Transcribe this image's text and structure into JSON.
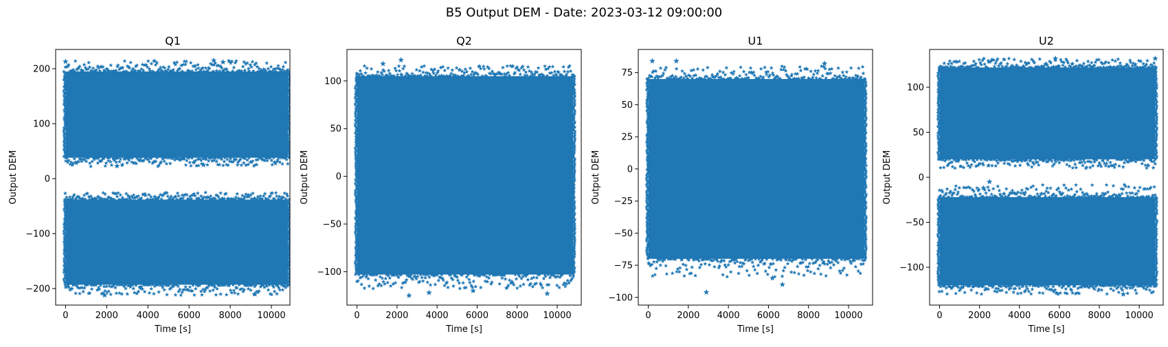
{
  "figure": {
    "title": "B5 Output DEM - Date: 2023-03-12 09:00:00"
  },
  "chart_data": [
    {
      "type": "scatter",
      "title": "Q1",
      "xlabel": "Time [s]",
      "ylabel": "Output DEM",
      "marker": "star",
      "color": "#1f77b4",
      "xlim": [
        -480,
        10900
      ],
      "ylim": [
        -230,
        235
      ],
      "xticks": [
        0,
        2000,
        4000,
        6000,
        8000,
        10000
      ],
      "yticks": [
        -200,
        -100,
        0,
        100,
        200
      ],
      "ytick_labels": [
        "−200",
        "−100",
        "0",
        "100",
        "200"
      ],
      "grid": false,
      "legend": "none",
      "x_range": [
        0,
        10800
      ],
      "bands": [
        {
          "ymin": 38,
          "ymax": 195,
          "edge_min": 22,
          "edge_max": 215
        },
        {
          "ymin": -193,
          "ymax": -38,
          "edge_min": -212,
          "edge_max": -25
        }
      ],
      "outliers": [
        [
          0,
          213
        ],
        [
          7200,
          215
        ],
        [
          7650,
          212
        ],
        [
          2500,
          23
        ],
        [
          6700,
          25
        ],
        [
          1900,
          -212
        ],
        [
          9200,
          -210
        ]
      ]
    },
    {
      "type": "scatter",
      "title": "Q2",
      "xlabel": "Time [s]",
      "ylabel": "Output DEM",
      "marker": "star",
      "color": "#1f77b4",
      "xlim": [
        -500,
        11200
      ],
      "ylim": [
        -135,
        133
      ],
      "xticks": [
        0,
        2000,
        4000,
        6000,
        8000,
        10000
      ],
      "yticks": [
        -100,
        -50,
        0,
        50,
        100
      ],
      "ytick_labels": [
        "−100",
        "−50",
        "0",
        "50",
        "100"
      ],
      "grid": false,
      "legend": "none",
      "x_range": [
        0,
        10800
      ],
      "bands": [
        {
          "ymin": -103,
          "ymax": 105,
          "edge_min": -118,
          "edge_max": 116
        }
      ],
      "outliers": [
        [
          2200,
          122
        ],
        [
          2600,
          -125
        ],
        [
          3600,
          -122
        ],
        [
          9500,
          -123
        ],
        [
          1300,
          118
        ],
        [
          5800,
          -120
        ]
      ]
    },
    {
      "type": "scatter",
      "title": "U1",
      "xlabel": "Time [s]",
      "ylabel": "Output DEM",
      "marker": "star",
      "color": "#1f77b4",
      "xlim": [
        -500,
        11200
      ],
      "ylim": [
        -106,
        93
      ],
      "xticks": [
        0,
        2000,
        4000,
        6000,
        8000,
        10000
      ],
      "yticks": [
        -100,
        -75,
        -50,
        -25,
        0,
        25,
        50,
        75
      ],
      "ytick_labels": [
        "−100",
        "−75",
        "−50",
        "−25",
        "0",
        "25",
        "50",
        "75"
      ],
      "grid": false,
      "legend": "none",
      "x_range": [
        0,
        10800
      ],
      "bands": [
        {
          "ymin": -70,
          "ymax": 70,
          "edge_min": -84,
          "edge_max": 80
        }
      ],
      "outliers": [
        [
          200,
          84
        ],
        [
          1400,
          84
        ],
        [
          2900,
          -96
        ],
        [
          6700,
          -90
        ],
        [
          8800,
          82
        ],
        [
          6200,
          -85
        ]
      ]
    },
    {
      "type": "scatter",
      "title": "U2",
      "xlabel": "Time [s]",
      "ylabel": "Output DEM",
      "marker": "star",
      "color": "#1f77b4",
      "xlim": [
        -500,
        11200
      ],
      "ylim": [
        -142,
        142
      ],
      "xticks": [
        0,
        2000,
        4000,
        6000,
        8000,
        10000
      ],
      "yticks": [
        -100,
        -50,
        0,
        50,
        100
      ],
      "ytick_labels": [
        "−100",
        "−50",
        "0",
        "50",
        "100"
      ],
      "grid": false,
      "legend": "none",
      "x_range": [
        0,
        10800
      ],
      "bands": [
        {
          "ymin": 20,
          "ymax": 122,
          "edge_min": 10,
          "edge_max": 132
        },
        {
          "ymin": -120,
          "ymax": -22,
          "edge_min": -130,
          "edge_max": -8
        }
      ],
      "outliers": [
        [
          2500,
          -5
        ],
        [
          2200,
          -12
        ],
        [
          5800,
          132
        ],
        [
          10800,
          132
        ],
        [
          9200,
          -130
        ]
      ]
    }
  ]
}
